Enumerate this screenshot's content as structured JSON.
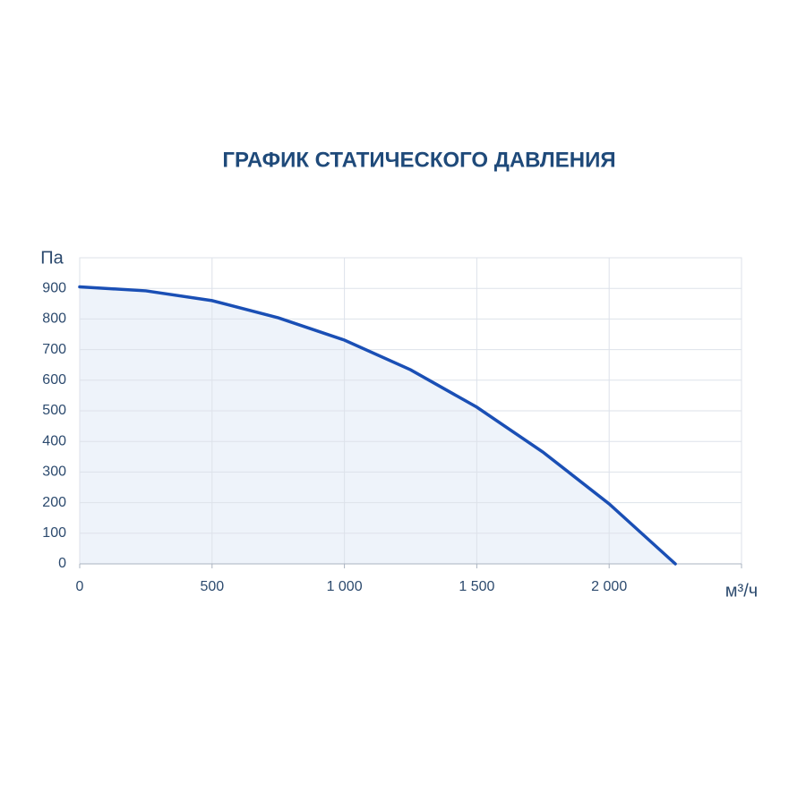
{
  "chart_data": {
    "type": "line",
    "title": "ГРАФИК СТАТИЧЕСКОГО ДАВЛЕНИЯ",
    "y_label": "Па",
    "x_label": "м³/ч",
    "series": [
      {
        "name": null,
        "color": "#1a4fb5",
        "x": [
          0,
          250,
          500,
          750,
          1000,
          1250,
          1500,
          1750,
          2000,
          2125,
          2250
        ],
        "values": [
          905,
          892,
          860,
          804,
          731,
          634,
          512,
          365,
          196,
          98,
          0
        ]
      }
    ],
    "fill_area": true,
    "area_color": "#eef3fa",
    "xlim": [
      0,
      2500
    ],
    "xticks": [
      0,
      500,
      {
        "value": 1000,
        "label": "1 000"
      },
      {
        "value": 1500,
        "label": "1 500"
      },
      {
        "value": 2000,
        "label": "2 000"
      }
    ],
    "ylim": [
      0,
      1000
    ],
    "yticks": [
      0,
      100,
      200,
      300,
      400,
      500,
      600,
      700,
      800,
      900
    ],
    "grid": true
  }
}
